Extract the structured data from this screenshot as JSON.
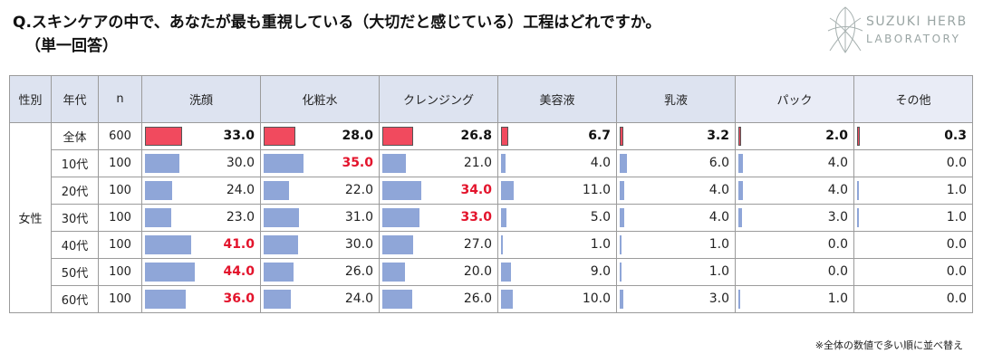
{
  "title": {
    "line1": "Q.スキンケアの中で、あなたが最も重視している（大切だと感じている）工程はどれですか。",
    "line2": "（単一回答）"
  },
  "logo": {
    "line1": "SUZUKI HERB",
    "line2": "LABORATORY"
  },
  "note": "※全体の数値で多い順に並べ替え",
  "colors": {
    "total_bar": "#f14a5e",
    "segment_bar": "#8fa6d8",
    "highlight_text": "#e3142c",
    "header_bg": "#dde3f0"
  },
  "chart_data": {
    "type": "table",
    "headers": {
      "gender": "性別",
      "age": "年代",
      "n": "n"
    },
    "categories": [
      "洗顔",
      "化粧水",
      "クレンジング",
      "美容液",
      "乳液",
      "パック",
      "その他"
    ],
    "group_label": "女性",
    "value_unit": "%",
    "rows": [
      {
        "age": "全体",
        "n": "600",
        "values": [
          "33.0",
          "28.0",
          "26.8",
          "6.7",
          "3.2",
          "2.0",
          "0.3"
        ],
        "is_total": true
      },
      {
        "age": "10代",
        "n": "100",
        "values": [
          "30.0",
          "35.0",
          "21.0",
          "4.0",
          "6.0",
          "4.0",
          "0.0"
        ],
        "max_index": 1
      },
      {
        "age": "20代",
        "n": "100",
        "values": [
          "24.0",
          "22.0",
          "34.0",
          "11.0",
          "4.0",
          "4.0",
          "1.0"
        ],
        "max_index": 2
      },
      {
        "age": "30代",
        "n": "100",
        "values": [
          "23.0",
          "31.0",
          "33.0",
          "5.0",
          "4.0",
          "3.0",
          "1.0"
        ],
        "max_index": 2
      },
      {
        "age": "40代",
        "n": "100",
        "values": [
          "41.0",
          "30.0",
          "27.0",
          "1.0",
          "1.0",
          "0.0",
          "0.0"
        ],
        "max_index": 0
      },
      {
        "age": "50代",
        "n": "100",
        "values": [
          "44.0",
          "26.0",
          "20.0",
          "9.0",
          "1.0",
          "0.0",
          "0.0"
        ],
        "max_index": 0
      },
      {
        "age": "60代",
        "n": "100",
        "values": [
          "36.0",
          "24.0",
          "26.0",
          "10.0",
          "3.0",
          "1.0",
          "0.0"
        ],
        "max_index": 0
      }
    ],
    "bar_scale_max": 100
  }
}
